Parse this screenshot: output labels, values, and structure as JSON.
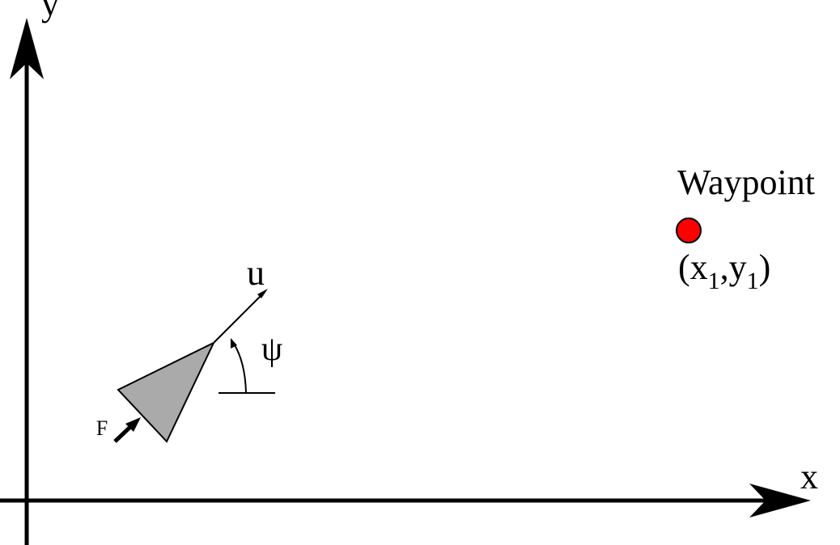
{
  "axes": {
    "x_label": "x",
    "y_label": "y"
  },
  "vehicle": {
    "velocity_label": "u",
    "heading_label": "ψ",
    "force_label": "F",
    "body_color": "#aaaaaa"
  },
  "waypoint": {
    "title": "Waypoint",
    "coord_open": "(x",
    "coord_sub_1": "1",
    "coord_sep": ",y",
    "coord_sub_2": "1",
    "coord_close": ")",
    "marker_color": "#ff0000"
  }
}
